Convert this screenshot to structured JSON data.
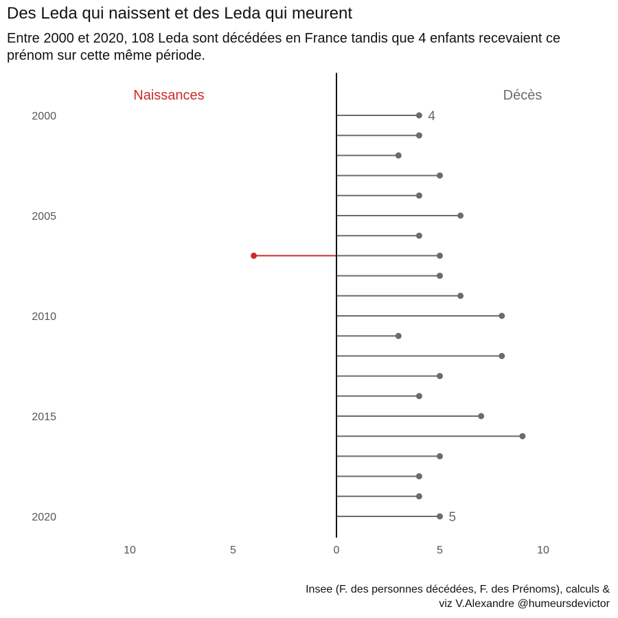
{
  "chart_data": {
    "type": "bar",
    "title": "Des Leda qui naissent et des Leda qui meurent",
    "subtitle": "Entre 2000 et 2020, 108 Leda sont décédées en France tandis que 4 enfants recevaient ce prénom sur cette même période.",
    "caption_lines": [
      "Insee (F. des personnes décédées, F. des Prénoms), calculs &",
      "viz V.Alexandre @humeursdevictor"
    ],
    "left_side_label": "Naissances",
    "right_side_label": "Décès",
    "years": [
      2000,
      2001,
      2002,
      2003,
      2004,
      2005,
      2006,
      2007,
      2008,
      2009,
      2010,
      2011,
      2012,
      2013,
      2014,
      2015,
      2016,
      2017,
      2018,
      2019,
      2020
    ],
    "year_tick_labels": [
      "2000",
      "2005",
      "2010",
      "2015",
      "2020"
    ],
    "series": [
      {
        "name": "Naissances",
        "color": "#cc2a2a",
        "points": [
          {
            "year": 2007,
            "value": 4
          }
        ]
      },
      {
        "name": "Décès",
        "color": "#6b6b6b",
        "values": [
          4,
          4,
          3,
          5,
          4,
          6,
          4,
          5,
          5,
          6,
          8,
          3,
          8,
          5,
          4,
          7,
          9,
          5,
          4,
          4,
          5
        ]
      }
    ],
    "end_labels": [
      {
        "year": 2000,
        "text": "4"
      },
      {
        "year": 2020,
        "text": "5"
      }
    ],
    "x_tick_labels": [
      "10",
      "5",
      "0",
      "5",
      "10"
    ],
    "x_tick_values": [
      -10,
      -5,
      0,
      5,
      10
    ],
    "xlim": [
      -10,
      10
    ],
    "axis_color": "#111111"
  }
}
